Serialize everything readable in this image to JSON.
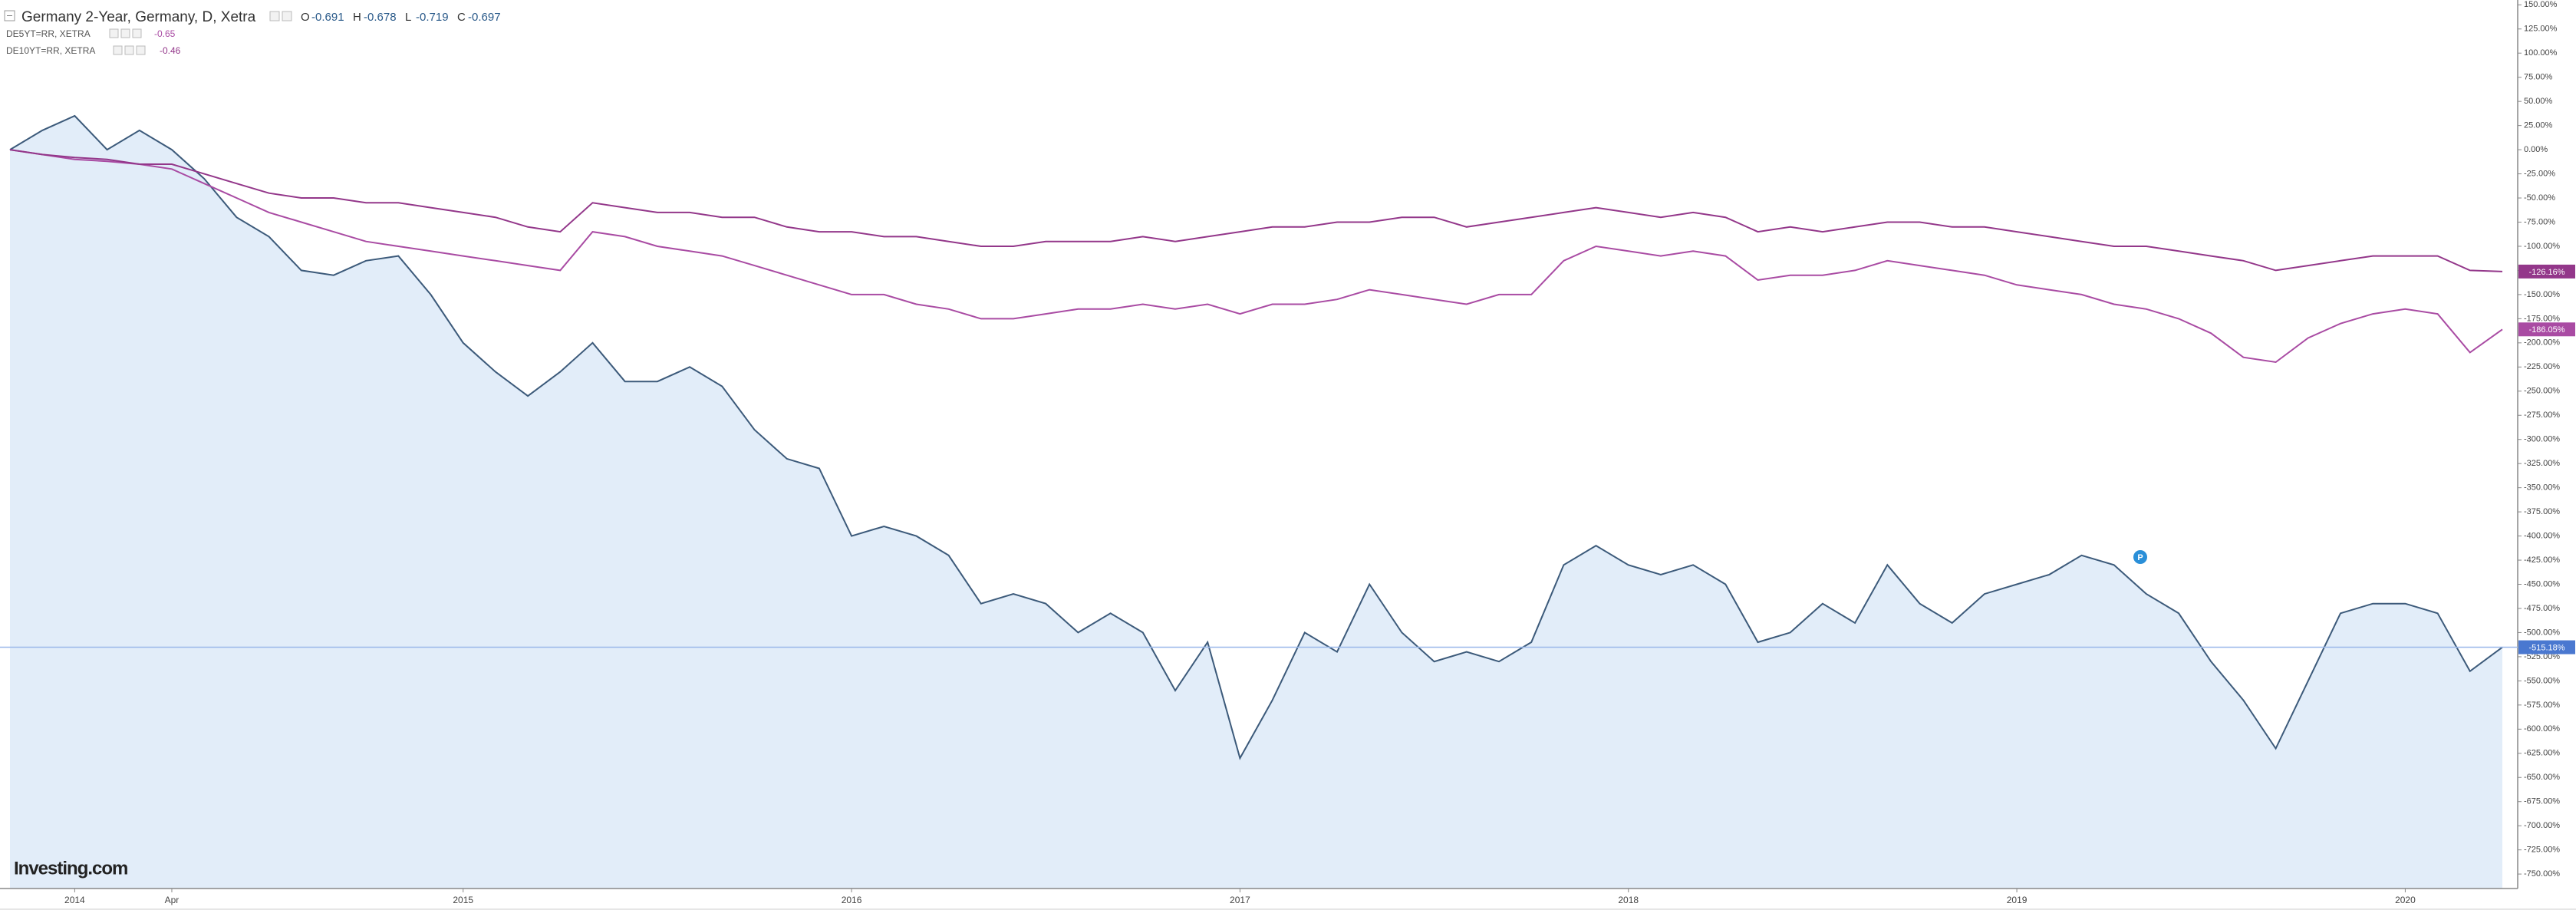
{
  "chart_data": {
    "type": "line",
    "watermark": "Investing.com",
    "ohlc": [
      {
        "label": "O",
        "value": -0.691
      },
      {
        "label": "H",
        "value": -0.678
      },
      {
        "label": "L",
        "value": -0.719
      },
      {
        "label": "C",
        "value": -0.697
      }
    ],
    "categories": [
      null,
      null,
      "2014",
      null,
      null,
      "Apr",
      null,
      null,
      null,
      null,
      null,
      null,
      null,
      null,
      "2015",
      null,
      null,
      null,
      null,
      null,
      null,
      null,
      null,
      null,
      null,
      null,
      "2016",
      null,
      null,
      null,
      null,
      null,
      null,
      null,
      null,
      null,
      null,
      null,
      "2017",
      null,
      null,
      null,
      null,
      null,
      null,
      null,
      null,
      null,
      null,
      null,
      "2018",
      null,
      null,
      null,
      null,
      null,
      null,
      null,
      null,
      null,
      null,
      null,
      "2019",
      null,
      null,
      null,
      null,
      null,
      null,
      null,
      null,
      null,
      null,
      null,
      "2020",
      null,
      null,
      null
    ],
    "series": [
      {
        "name": "Germany 2-Year, Germany, D, Xetra",
        "color": "#3c5a7a",
        "area": true,
        "last": {
          "value": -515.18,
          "label": "-515.18%"
        },
        "values": [
          0,
          20,
          35,
          0,
          20,
          0,
          -30,
          -70,
          -90,
          -125,
          -130,
          -115,
          -110,
          -150,
          -200,
          -230,
          -255,
          -230,
          -200,
          -240,
          -240,
          -225,
          -245,
          -290,
          -320,
          -330,
          -400,
          -390,
          -400,
          -420,
          -470,
          -460,
          -470,
          -500,
          -480,
          -500,
          -560,
          -510,
          -630,
          -570,
          -500,
          -520,
          -450,
          -500,
          -530,
          -520,
          -530,
          -510,
          -430,
          -410,
          -430,
          -440,
          -430,
          -450,
          -510,
          -500,
          -470,
          -490,
          -430,
          -470,
          -490,
          -460,
          -450,
          -440,
          -420,
          -430,
          -460,
          -480,
          -530,
          -570,
          -620,
          -550,
          -480,
          -470,
          -470,
          -480,
          -540,
          -515.18
        ]
      },
      {
        "name": "DE5YT=RR, XETRA",
        "color": "#a94ba3",
        "current": -0.65,
        "last": {
          "value": -186.05,
          "label": "-186.05%"
        },
        "values": [
          0,
          -5,
          -10,
          -12,
          -15,
          -20,
          -35,
          -50,
          -65,
          -75,
          -85,
          -95,
          -100,
          -105,
          -110,
          -115,
          -120,
          -125,
          -85,
          -90,
          -100,
          -105,
          -110,
          -120,
          -130,
          -140,
          -150,
          -150,
          -160,
          -165,
          -175,
          -175,
          -170,
          -165,
          -165,
          -160,
          -165,
          -160,
          -170,
          -160,
          -160,
          -155,
          -145,
          -150,
          -155,
          -160,
          -150,
          -150,
          -115,
          -100,
          -105,
          -110,
          -105,
          -110,
          -135,
          -130,
          -130,
          -125,
          -115,
          -120,
          -125,
          -130,
          -140,
          -145,
          -150,
          -160,
          -165,
          -175,
          -190,
          -215,
          -220,
          -195,
          -180,
          -170,
          -165,
          -170,
          -210,
          -186.05
        ]
      },
      {
        "name": "DE10YT=RR, XETRA",
        "color": "#93378a",
        "current": -0.46,
        "last": {
          "value": -126.16,
          "label": "-126.16%"
        },
        "values": [
          0,
          -5,
          -8,
          -10,
          -15,
          -15,
          -25,
          -35,
          -45,
          -50,
          -50,
          -55,
          -55,
          -60,
          -65,
          -70,
          -80,
          -85,
          -55,
          -60,
          -65,
          -65,
          -70,
          -70,
          -80,
          -85,
          -85,
          -90,
          -90,
          -95,
          -100,
          -100,
          -95,
          -95,
          -95,
          -90,
          -95,
          -90,
          -85,
          -80,
          -80,
          -75,
          -75,
          -70,
          -70,
          -80,
          -75,
          -70,
          -65,
          -60,
          -65,
          -70,
          -65,
          -70,
          -85,
          -80,
          -85,
          -80,
          -75,
          -75,
          -80,
          -80,
          -85,
          -90,
          -95,
          -100,
          -100,
          -105,
          -110,
          -115,
          -125,
          -120,
          -115,
          -110,
          -110,
          -110,
          -125,
          -126.16
        ]
      }
    ],
    "ylim": [
      -765,
      155
    ],
    "yticks": [
      {
        "value": 150,
        "label": "150.00%"
      },
      {
        "value": 125,
        "label": "125.00%"
      },
      {
        "value": 100,
        "label": "100.00%"
      },
      {
        "value": 75,
        "label": "75.00%"
      },
      {
        "value": 50,
        "label": "50.00%"
      },
      {
        "value": 25,
        "label": "25.00%"
      },
      {
        "value": 0,
        "label": "0.00%"
      },
      {
        "value": -25,
        "label": "-25.00%"
      },
      {
        "value": -50,
        "label": "-50.00%"
      },
      {
        "value": -75,
        "label": "-75.00%"
      },
      {
        "value": -100,
        "label": "-100.00%"
      },
      {
        "value": -125,
        "label": "-125.00%"
      },
      {
        "value": -150,
        "label": "-150.00%"
      },
      {
        "value": -175,
        "label": "-175.00%"
      },
      {
        "value": -200,
        "label": "-200.00%"
      },
      {
        "value": -225,
        "label": "-225.00%"
      },
      {
        "value": -250,
        "label": "-250.00%"
      },
      {
        "value": -275,
        "label": "-275.00%"
      },
      {
        "value": -300,
        "label": "-300.00%"
      },
      {
        "value": -325,
        "label": "-325.00%"
      },
      {
        "value": -350,
        "label": "-350.00%"
      },
      {
        "value": -375,
        "label": "-375.00%"
      },
      {
        "value": -400,
        "label": "-400.00%"
      },
      {
        "value": -425,
        "label": "-425.00%"
      },
      {
        "value": -450,
        "label": "-450.00%"
      },
      {
        "value": -475,
        "label": "-475.00%"
      },
      {
        "value": -500,
        "label": "-500.00%"
      },
      {
        "value": -525,
        "label": "-525.00%"
      },
      {
        "value": -550,
        "label": "-550.00%"
      },
      {
        "value": -575,
        "label": "-575.00%"
      },
      {
        "value": -600,
        "label": "-600.00%"
      },
      {
        "value": -625,
        "label": "-625.00%"
      },
      {
        "value": -650,
        "label": "-650.00%"
      },
      {
        "value": -675,
        "label": "-675.00%"
      },
      {
        "value": -700,
        "label": "-700.00%"
      },
      {
        "value": -725,
        "label": "-725.00%"
      },
      {
        "value": -750,
        "label": "-750.00%"
      }
    ],
    "grid": false
  }
}
